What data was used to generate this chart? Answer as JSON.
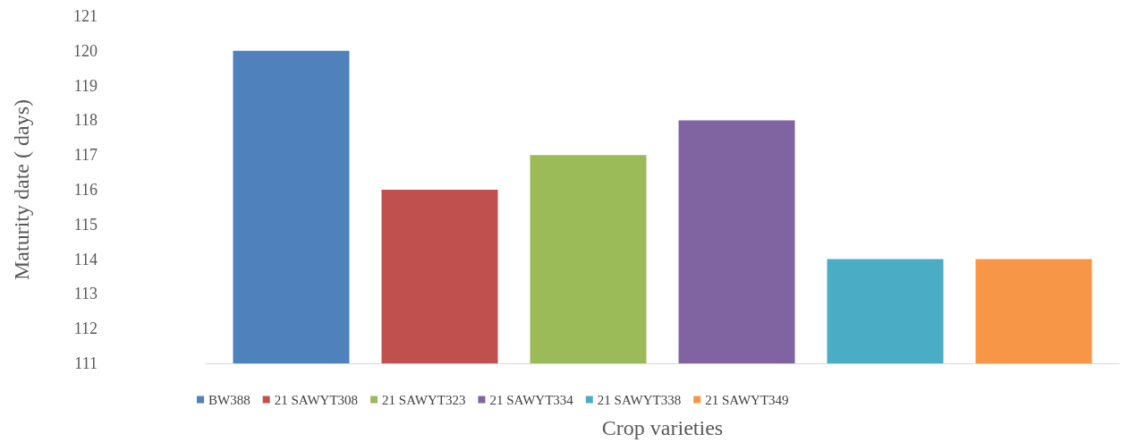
{
  "chart_data": {
    "type": "bar",
    "xlabel": "Crop varieties",
    "ylabel": "Maturity date ( days)",
    "categories": [
      null
    ],
    "series": [
      {
        "name": "BW388",
        "color": "#4f81bd",
        "values": [
          120
        ]
      },
      {
        "name": "21 SAWYT308",
        "color": "#c0504d",
        "values": [
          116
        ]
      },
      {
        "name": "21 SAWYT323",
        "color": "#9bbb59",
        "values": [
          117
        ]
      },
      {
        "name": "21 SAWYT334",
        "color": "#8064a2",
        "values": [
          118
        ]
      },
      {
        "name": "21 SAWYT338",
        "color": "#4bacc6",
        "values": [
          114
        ]
      },
      {
        "name": "21 SAWYT349",
        "color": "#f79646",
        "values": [
          114
        ]
      }
    ],
    "ylim": [
      111,
      121
    ],
    "yticks": [
      111,
      112,
      113,
      114,
      115,
      116,
      117,
      118,
      119,
      120,
      121
    ],
    "grid": false,
    "legend": "bottom"
  }
}
